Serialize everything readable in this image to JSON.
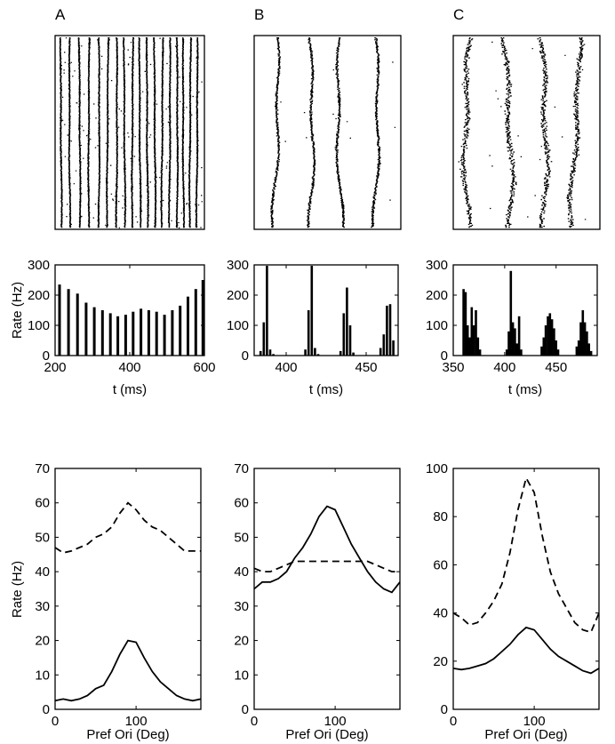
{
  "panels": [
    {
      "letter": "A",
      "raster": {
        "type": "raster",
        "bands": [
          0.03,
          0.09,
          0.155,
          0.22,
          0.285,
          0.345,
          0.405,
          0.46,
          0.515,
          0.565,
          0.615,
          0.665,
          0.715,
          0.765,
          0.815,
          0.86,
          0.905,
          0.95
        ],
        "wobble": 0.004,
        "scatter": 0.005,
        "background": 0.02
      },
      "histogram": {
        "type": "bar",
        "xlabel": "t (ms)",
        "ylabel": "Rate (Hz)",
        "xlim": [
          200,
          600
        ],
        "ylim": [
          0,
          300
        ],
        "xticks": [
          200,
          400,
          600
        ],
        "yticks": [
          0,
          100,
          200,
          300
        ],
        "x": [
          212,
          236,
          260,
          283,
          305,
          327,
          348,
          368,
          389,
          409,
          430,
          451,
          472,
          493,
          514,
          535,
          556,
          577,
          596
        ],
        "values": [
          235,
          220,
          205,
          175,
          160,
          150,
          140,
          130,
          135,
          145,
          155,
          150,
          145,
          135,
          150,
          165,
          195,
          220,
          250
        ]
      },
      "tuning": {
        "type": "line",
        "xlabel": "Pref Ori (Deg)",
        "ylabel": "Rate (Hz)",
        "xlim": [
          0,
          180
        ],
        "ylim": [
          0,
          70
        ],
        "xticks": [
          0,
          100
        ],
        "yticks": [
          0,
          10,
          20,
          30,
          40,
          50,
          60,
          70
        ],
        "series": [
          {
            "style": "solid",
            "x": [
              0,
              10,
              20,
              30,
              40,
              50,
              60,
              70,
              80,
              90,
              100,
              110,
              120,
              130,
              140,
              150,
              160,
              170,
              180
            ],
            "values": [
              2.5,
              3,
              2.5,
              3,
              4,
              6,
              7,
              11,
              16,
              20,
              19.5,
              15,
              11,
              8,
              6,
              4,
              3,
              2.5,
              3
            ]
          },
          {
            "style": "dashed",
            "x": [
              0,
              10,
              20,
              30,
              40,
              50,
              60,
              70,
              80,
              90,
              100,
              110,
              120,
              130,
              140,
              150,
              160,
              170,
              180
            ],
            "values": [
              47,
              45.5,
              46,
              47,
              48,
              50,
              51,
              53,
              57,
              60,
              58,
              55,
              53,
              52,
              50,
              48,
              46,
              46,
              46
            ]
          }
        ]
      }
    },
    {
      "letter": "B",
      "raster": {
        "type": "raster",
        "bands": [
          0.13,
          0.37,
          0.59,
          0.82
        ],
        "wobble": 0.025,
        "scatter": 0.012,
        "background": 0.002
      },
      "histogram": {
        "type": "bar",
        "xlabel": "t (ms)",
        "ylabel": "",
        "xlim": [
          380,
          470
        ],
        "ylim": [
          0,
          300
        ],
        "xticks": [
          400,
          450
        ],
        "yticks": [
          0,
          100,
          200,
          300
        ],
        "x": [
          384,
          386,
          388,
          390,
          392,
          412,
          414,
          416,
          418,
          420,
          434,
          436,
          438,
          440,
          442,
          459,
          461,
          463,
          465,
          467
        ],
        "values": [
          15,
          110,
          320,
          20,
          5,
          20,
          150,
          300,
          25,
          5,
          15,
          140,
          225,
          100,
          10,
          25,
          70,
          165,
          170,
          50
        ]
      },
      "tuning": {
        "type": "line",
        "xlabel": "Pref Ori (Deg)",
        "ylabel": "",
        "xlim": [
          0,
          180
        ],
        "ylim": [
          0,
          70
        ],
        "xticks": [
          0,
          100
        ],
        "yticks": [
          0,
          10,
          20,
          30,
          40,
          50,
          60,
          70
        ],
        "series": [
          {
            "style": "solid",
            "x": [
              0,
              10,
              20,
              30,
              40,
              50,
              60,
              70,
              80,
              90,
              100,
              110,
              120,
              130,
              140,
              150,
              160,
              170,
              180
            ],
            "values": [
              35,
              37,
              37,
              38,
              40,
              44,
              47,
              51,
              56,
              59,
              58,
              53,
              48,
              44,
              40,
              37,
              35,
              34,
              37
            ]
          },
          {
            "style": "dashed",
            "x": [
              0,
              10,
              20,
              30,
              40,
              50,
              60,
              70,
              80,
              90,
              100,
              110,
              120,
              130,
              140,
              150,
              160,
              170,
              180
            ],
            "values": [
              41,
              40,
              40,
              41,
              42,
              43,
              43,
              43,
              43,
              43,
              43,
              43,
              43,
              43,
              43,
              42,
              41,
              40,
              40
            ]
          }
        ]
      }
    },
    {
      "letter": "C",
      "raster": {
        "type": "raster",
        "bands": [
          0.1,
          0.36,
          0.6,
          0.83
        ],
        "wobble": 0.03,
        "scatter": 0.03,
        "background": 0.003
      },
      "histogram": {
        "type": "bar",
        "xlabel": "t (ms)",
        "ylabel": "",
        "xlim": [
          350,
          490
        ],
        "ylim": [
          0,
          300
        ],
        "xticks": [
          350,
          400,
          450
        ],
        "yticks": [
          0,
          100,
          200,
          300
        ],
        "x": [
          360,
          362,
          364,
          366,
          368,
          370,
          372,
          374,
          376,
          402,
          404,
          406,
          408,
          410,
          412,
          414,
          416,
          436,
          438,
          440,
          442,
          444,
          446,
          448,
          450,
          452,
          470,
          472,
          474,
          476,
          478,
          480,
          482,
          484
        ],
        "values": [
          220,
          210,
          100,
          60,
          160,
          100,
          150,
          60,
          20,
          20,
          80,
          280,
          110,
          90,
          40,
          130,
          20,
          30,
          60,
          100,
          130,
          140,
          120,
          90,
          50,
          20,
          30,
          50,
          110,
          150,
          110,
          80,
          40,
          15
        ]
      },
      "tuning": {
        "type": "line",
        "xlabel": "Pref Ori (Deg)",
        "ylabel": "",
        "xlim": [
          0,
          180
        ],
        "ylim": [
          0,
          100
        ],
        "xticks": [
          0,
          100
        ],
        "yticks": [
          0,
          20,
          40,
          60,
          80,
          100
        ],
        "series": [
          {
            "style": "solid",
            "x": [
              0,
              10,
              20,
              30,
              40,
              50,
              60,
              70,
              80,
              90,
              100,
              110,
              120,
              130,
              140,
              150,
              160,
              170,
              180
            ],
            "values": [
              17,
              16.5,
              17,
              18,
              19,
              21,
              24,
              27,
              31,
              34,
              33,
              29,
              25,
              22,
              20,
              18,
              16,
              15,
              17
            ]
          },
          {
            "style": "dashed",
            "x": [
              0,
              10,
              20,
              30,
              40,
              50,
              60,
              70,
              80,
              90,
              100,
              110,
              120,
              130,
              140,
              150,
              160,
              170,
              180
            ],
            "values": [
              40,
              38,
              35,
              36,
              40,
              45,
              52,
              65,
              83,
              96,
              90,
              72,
              57,
              48,
              42,
              36,
              33,
              32,
              40
            ]
          }
        ]
      }
    }
  ]
}
